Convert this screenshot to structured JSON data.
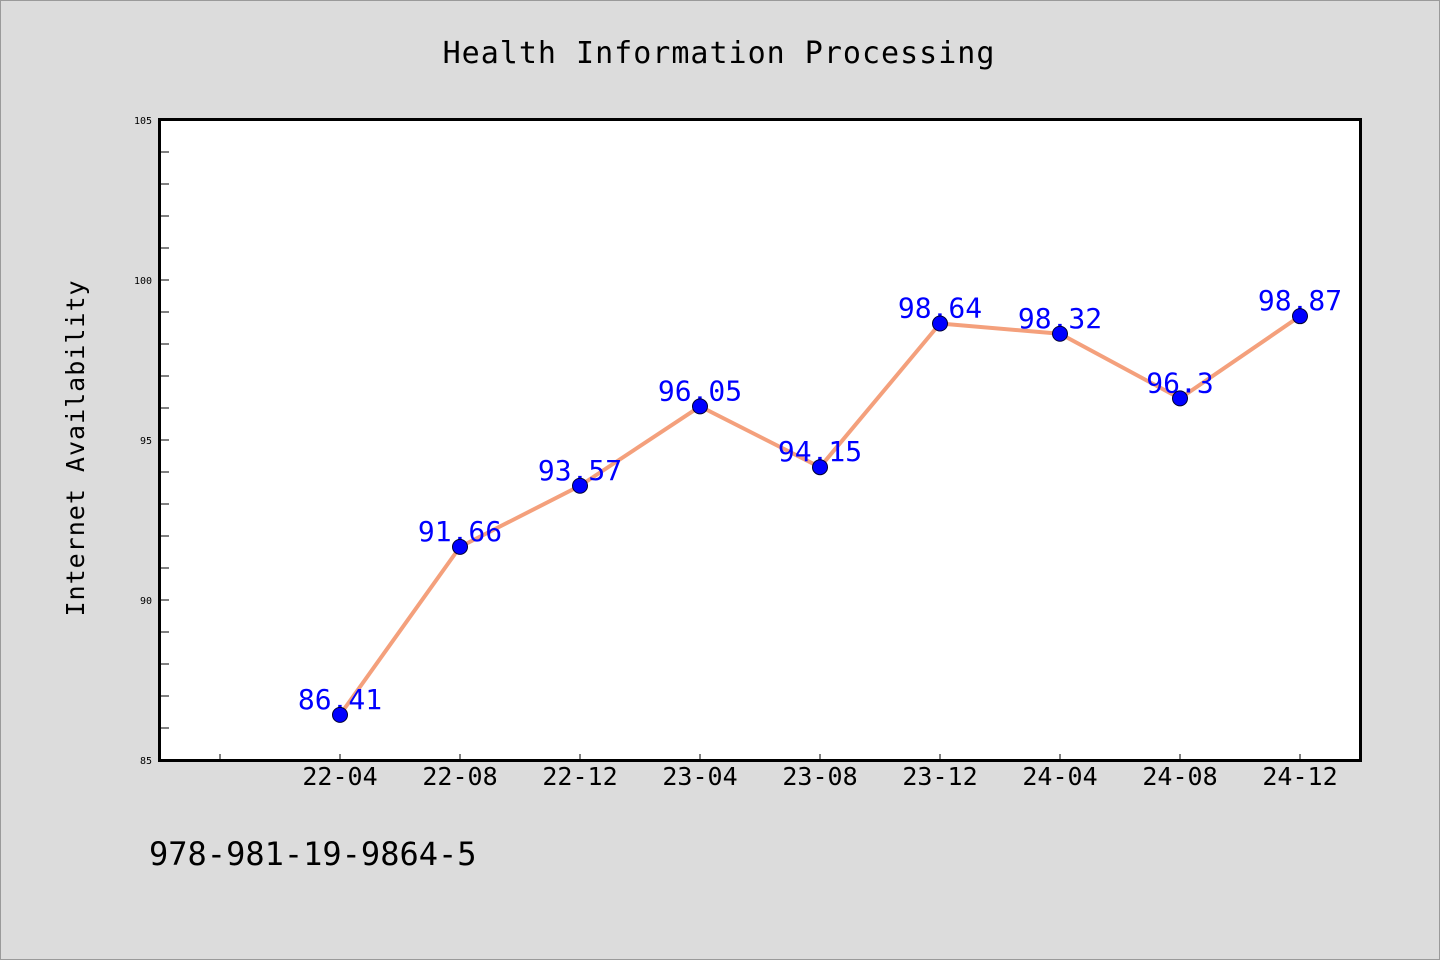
{
  "chart_data": {
    "type": "line",
    "title": "Health Information Processing",
    "xlabel": "",
    "ylabel": "Internet Availability",
    "categories": [
      "22-04",
      "22-08",
      "22-12",
      "23-04",
      "23-08",
      "23-12",
      "24-04",
      "24-08",
      "24-12"
    ],
    "series": [
      {
        "values": [
          86.41,
          91.66,
          93.57,
          96.05,
          94.15,
          98.64,
          98.32,
          96.3,
          98.87
        ],
        "labels": [
          "86.41",
          "91.66",
          "93.57",
          "96.05",
          "94.15",
          "98.64",
          "98.32",
          "96.3",
          "98.87"
        ]
      }
    ],
    "ylim": [
      85,
      105
    ],
    "yticks": [
      85,
      90,
      95,
      100,
      105
    ],
    "ytick_labels": [
      "85",
      "90",
      "95",
      "100",
      "105"
    ],
    "grid": false,
    "line_color": "#f4a07c",
    "marker_color": "#0000ff",
    "label_color": "#0000ff"
  },
  "footer": {
    "isbn": "978-981-19-9864-5"
  }
}
